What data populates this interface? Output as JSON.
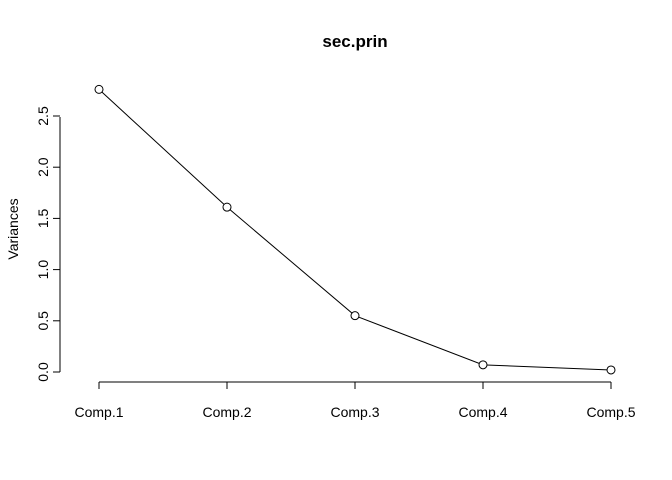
{
  "chart_data": {
    "type": "line",
    "title": "sec.prin",
    "xlabel": "",
    "ylabel": "Variances",
    "categories": [
      "Comp.1",
      "Comp.2",
      "Comp.3",
      "Comp.4",
      "Comp.5"
    ],
    "values": [
      2.76,
      1.61,
      0.55,
      0.07,
      0.02
    ],
    "yticks": [
      "0.0",
      "0.5",
      "1.0",
      "1.5",
      "2.0",
      "2.5"
    ],
    "ylim": [
      0,
      2.76
    ],
    "grid": false,
    "markers": "open-circle",
    "colors": {
      "line": "#000000",
      "marker_fill": "#ffffff"
    }
  }
}
